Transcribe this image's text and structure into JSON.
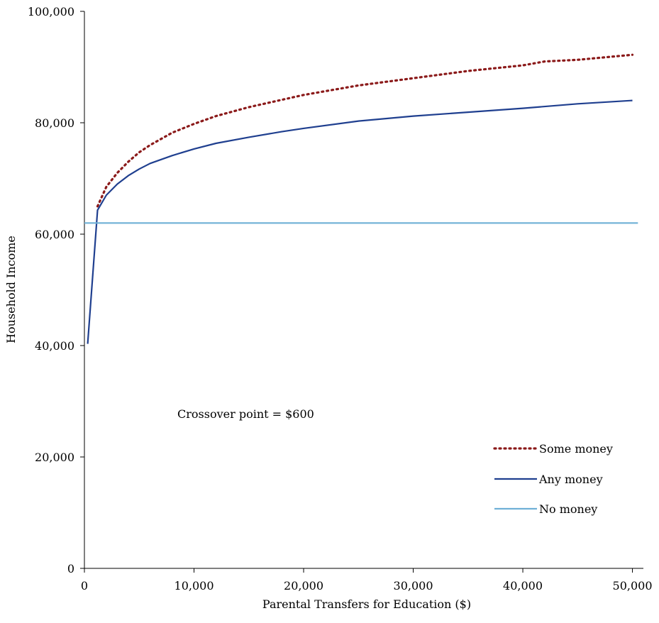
{
  "chart_data": {
    "type": "line",
    "title": "",
    "xlabel": "Parental Transfers for Education ($)",
    "ylabel": "Household Income",
    "xlim": [
      0,
      51000
    ],
    "ylim": [
      0,
      100000
    ],
    "x_ticks": [
      0,
      10000,
      20000,
      30000,
      40000,
      50000
    ],
    "x_tick_labels": [
      "0",
      "10,000",
      "20,000",
      "30,000",
      "40,000",
      "50,000"
    ],
    "y_ticks": [
      0,
      20000,
      40000,
      60000,
      80000,
      100000
    ],
    "y_tick_labels": [
      "0",
      "20,000",
      "40,000",
      "60,000",
      "80,000",
      "100,000"
    ],
    "grid": false,
    "legend_position": "bottom-right",
    "annotation": "Crossover point =  $600",
    "series": [
      {
        "name": "Some money",
        "style": "dotted",
        "color": "#8B1A1A",
        "x": [
          1200,
          2000,
          3000,
          4000,
          5000,
          6000,
          8000,
          10000,
          12000,
          15000,
          20000,
          25000,
          30000,
          35000,
          40000,
          42000,
          45000,
          50000
        ],
        "y": [
          65000,
          68500,
          71000,
          73000,
          74700,
          76000,
          78200,
          79800,
          81200,
          82800,
          85000,
          86700,
          88000,
          89300,
          90300,
          91000,
          91300,
          92200
        ]
      },
      {
        "name": "Any money",
        "style": "solid",
        "color": "#1F3F8F",
        "x": [
          300,
          1200,
          2000,
          3000,
          4000,
          5000,
          6000,
          8000,
          10000,
          12000,
          15000,
          18000,
          20000,
          25000,
          30000,
          35000,
          40000,
          45000,
          50000
        ],
        "y": [
          40300,
          64300,
          67000,
          69000,
          70500,
          71700,
          72700,
          74100,
          75300,
          76300,
          77400,
          78400,
          79000,
          80300,
          81200,
          81900,
          82600,
          83400,
          84000
        ]
      },
      {
        "name": "No money",
        "style": "solid",
        "color": "#6FB0D6",
        "x": [
          0,
          50500
        ],
        "y": [
          62000,
          62000
        ]
      }
    ]
  }
}
